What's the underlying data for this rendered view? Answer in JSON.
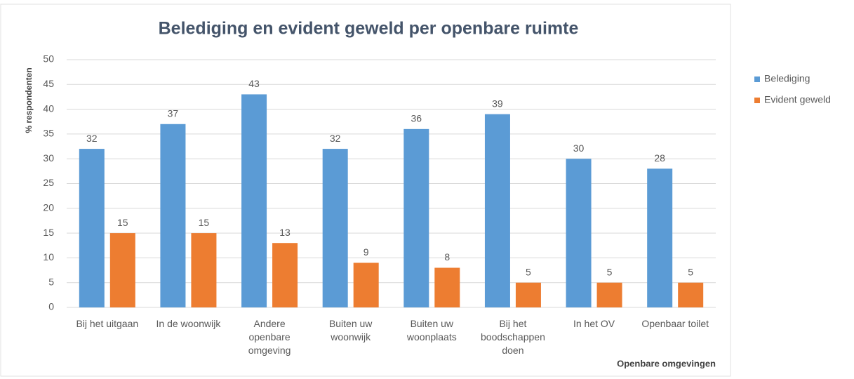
{
  "chart_data": {
    "type": "bar",
    "title": "Belediging en evident geweld per openbare ruimte",
    "y_label": "% respondenten",
    "x_label": "Openbare omgevingen",
    "categories": [
      "Bij het uitgaan",
      "In de woonwijk",
      "Andere openbare omgeving",
      "Buiten uw woonwijk",
      "Buiten uw woonplaats",
      "Bij het boodschappen doen",
      "In het OV",
      "Openbaar toilet"
    ],
    "series": [
      {
        "name": "Belediging",
        "color": "#5b9bd5",
        "values": [
          32,
          37,
          43,
          32,
          36,
          39,
          30,
          28
        ]
      },
      {
        "name": "Evident geweld",
        "color": "#ed7d31",
        "values": [
          15,
          15,
          13,
          9,
          8,
          5,
          5,
          5
        ]
      }
    ],
    "ylim": [
      0,
      50
    ],
    "yticks": [
      0,
      5,
      10,
      15,
      20,
      25,
      30,
      35,
      40,
      45,
      50
    ],
    "grid": true,
    "legend": "right"
  }
}
